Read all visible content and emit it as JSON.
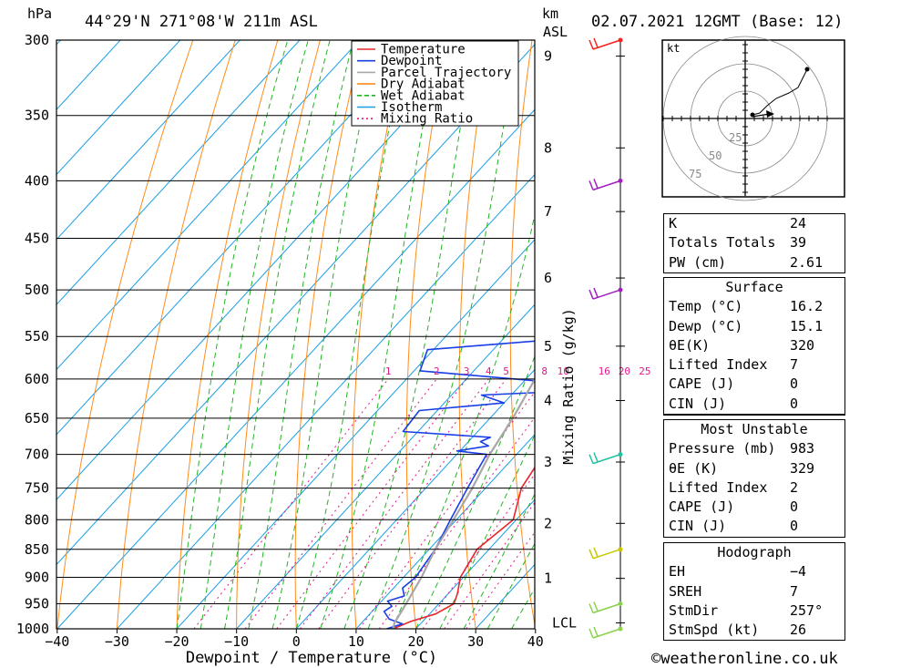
{
  "header": {
    "location": "44°29'N 271°08'W 211m ASL",
    "datetime": "02.07.2021 12GMT (Base: 12)",
    "pressure_unit": "hPa",
    "height_unit_1": "km",
    "height_unit_2": "ASL"
  },
  "chart_data": {
    "type": "line",
    "xlabel": "Dewpoint / Temperature (°C)",
    "ylabel": "hPa",
    "y2label": "Mixing Ratio (g/kg)",
    "xlim": [
      -40,
      40
    ],
    "ylim": [
      1000,
      300
    ],
    "x_ticks": [
      "−40",
      "−30",
      "−20",
      "−10",
      "0",
      "10",
      "20",
      "30",
      "40"
    ],
    "y_ticks": [
      "300",
      "350",
      "400",
      "450",
      "500",
      "550",
      "600",
      "650",
      "700",
      "750",
      "800",
      "850",
      "900",
      "950",
      "1000"
    ],
    "km_ticks": [
      {
        "label": "9",
        "p": 310
      },
      {
        "label": "8",
        "p": 374
      },
      {
        "label": "7",
        "p": 426
      },
      {
        "label": "6",
        "p": 488
      },
      {
        "label": "5",
        "p": 561
      },
      {
        "label": "4",
        "p": 627
      },
      {
        "label": "3",
        "p": 711
      },
      {
        "label": "2",
        "p": 806
      },
      {
        "label": "1",
        "p": 902
      },
      {
        "label": "LCL",
        "p": 988
      }
    ],
    "mixing_ratio_labels": [
      "1",
      "2",
      "3",
      "4",
      "5",
      "8",
      "10",
      "16",
      "20",
      "25"
    ],
    "legend": {
      "position": "top-right",
      "entries": [
        {
          "name": "Temperature",
          "color": "#e8262c"
        },
        {
          "name": "Dewpoint",
          "color": "#1a3ee6"
        },
        {
          "name": "Parcel Trajectory",
          "color": "#a8a8a8"
        },
        {
          "name": "Dry Adiabat",
          "color": "#ff8c1a"
        },
        {
          "name": "Wet Adiabat",
          "color": "#22b422"
        },
        {
          "name": "Isotherm",
          "color": "#1a9ee6"
        },
        {
          "name": "Mixing Ratio",
          "color": "#e01a8c"
        }
      ]
    },
    "series": [
      {
        "name": "Temperature",
        "color": "#e8262c",
        "points": [
          [
            1000,
            16.2
          ],
          [
            985,
            18
          ],
          [
            970,
            21
          ],
          [
            950,
            22.5
          ],
          [
            930,
            21.5
          ],
          [
            900,
            19.5
          ],
          [
            850,
            18
          ],
          [
            800,
            19.5
          ],
          [
            750,
            16
          ],
          [
            700,
            14.5
          ],
          [
            650,
            13
          ],
          [
            630,
            12.5
          ],
          [
            600,
            10
          ],
          [
            570,
            9
          ],
          [
            550,
            8
          ],
          [
            520,
            5
          ],
          [
            500,
            4.5
          ],
          [
            480,
            3
          ],
          [
            450,
            2
          ],
          [
            420,
            -0.5
          ],
          [
            400,
            -3
          ],
          [
            375,
            -6.5
          ],
          [
            350,
            -9
          ],
          [
            330,
            -12
          ],
          [
            300,
            -15
          ]
        ]
      },
      {
        "name": "Dewpoint",
        "color": "#1a3ee6",
        "points": [
          [
            1000,
            15.1
          ],
          [
            990,
            17
          ],
          [
            980,
            14
          ],
          [
            965,
            12
          ],
          [
            955,
            12.5
          ],
          [
            945,
            11
          ],
          [
            935,
            13
          ],
          [
            920,
            11.5
          ],
          [
            900,
            12
          ],
          [
            850,
            11
          ],
          [
            800,
            9
          ],
          [
            750,
            7
          ],
          [
            700,
            5
          ],
          [
            695,
            -0.5
          ],
          [
            688,
            4
          ],
          [
            682,
            2
          ],
          [
            676,
            3
          ],
          [
            668,
            -12.5
          ],
          [
            640,
            -13
          ],
          [
            630,
            0
          ],
          [
            620,
            -5
          ],
          [
            615,
            9
          ],
          [
            604,
            5
          ],
          [
            590,
            -19
          ],
          [
            565,
            -21
          ],
          [
            555,
            -4
          ],
          [
            540,
            3.5
          ],
          [
            530,
            3.5
          ],
          [
            525,
            -3
          ],
          [
            510,
            -9.5
          ],
          [
            495,
            -6
          ],
          [
            480,
            3
          ],
          [
            470,
            2.5
          ],
          [
            450,
            -3.5
          ],
          [
            430,
            8
          ],
          [
            410,
            7
          ],
          [
            395,
            4
          ],
          [
            370,
            3
          ],
          [
            350,
            -2
          ],
          [
            340,
            2.5
          ],
          [
            330,
            -6
          ],
          [
            315,
            -17
          ],
          [
            300,
            -14
          ]
        ]
      },
      {
        "name": "Parcel Trajectory",
        "color": "#a8a8a8",
        "points": [
          [
            1000,
            16.2
          ],
          [
            988,
            15.5
          ],
          [
            950,
            14.5
          ],
          [
            900,
            13
          ],
          [
            850,
            11
          ],
          [
            800,
            9.5
          ],
          [
            750,
            7.8
          ],
          [
            700,
            5.5
          ],
          [
            650,
            3.8
          ],
          [
            600,
            1.5
          ],
          [
            550,
            -0.5
          ],
          [
            500,
            -3.5
          ],
          [
            450,
            -7
          ],
          [
            400,
            -12
          ],
          [
            350,
            -18
          ],
          [
            310,
            -23
          ]
        ]
      }
    ],
    "wind_barbs": [
      {
        "p": 1000,
        "color": "#8ad24a"
      },
      {
        "p": 950,
        "color": "#8ad24a"
      },
      {
        "p": 850,
        "color": "#c8c800"
      },
      {
        "p": 700,
        "color": "#20c0a0"
      },
      {
        "p": 500,
        "color": "#a020c0"
      },
      {
        "p": 400,
        "color": "#a020c0"
      },
      {
        "p": 300,
        "color": "#ff2020"
      }
    ]
  },
  "hodograph": {
    "unit": "kt",
    "ring_labels": [
      "25",
      "50",
      "75"
    ]
  },
  "indices_table": {
    "rows": [
      {
        "label": "K",
        "value": "24"
      },
      {
        "label": "Totals Totals",
        "value": "39"
      },
      {
        "label": "PW (cm)",
        "value": "2.61"
      }
    ]
  },
  "surface_table": {
    "title": "Surface",
    "rows": [
      {
        "label": "Temp (°C)",
        "value": "16.2"
      },
      {
        "label": "Dewp (°C)",
        "value": "15.1"
      },
      {
        "label": "θE(K)",
        "value": "320"
      },
      {
        "label": "Lifted Index",
        "value": "7"
      },
      {
        "label": "CAPE (J)",
        "value": "0"
      },
      {
        "label": "CIN (J)",
        "value": "0"
      }
    ]
  },
  "most_unstable_table": {
    "title": "Most Unstable",
    "rows": [
      {
        "label": "Pressure (mb)",
        "value": "983"
      },
      {
        "label": "θE (K)",
        "value": "329"
      },
      {
        "label": "Lifted Index",
        "value": "2"
      },
      {
        "label": "CAPE (J)",
        "value": "0"
      },
      {
        "label": "CIN (J)",
        "value": "0"
      }
    ]
  },
  "hodograph_table": {
    "title": "Hodograph",
    "rows": [
      {
        "label": "EH",
        "value": "−4"
      },
      {
        "label": "SREH",
        "value": "7"
      },
      {
        "label": "StmDir",
        "value": "257°"
      },
      {
        "label": "StmSpd (kt)",
        "value": "26"
      }
    ]
  },
  "footer": {
    "copyright": "©weatheronline.co.uk"
  }
}
